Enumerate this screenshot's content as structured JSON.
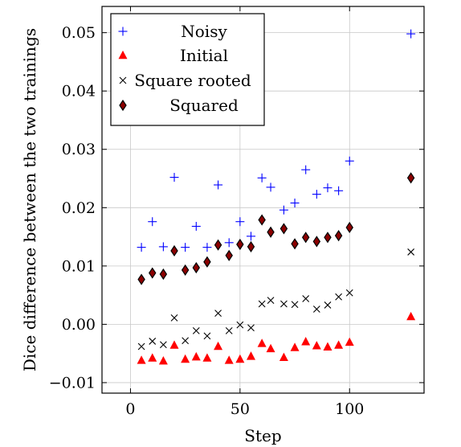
{
  "chart_data": {
    "type": "scatter",
    "xlabel": "Step",
    "ylabel": "Dice difference between the two trainings",
    "xlim": [
      -13,
      134
    ],
    "ylim": [
      -0.0118,
      0.0545
    ],
    "xticks": [
      0,
      50,
      100
    ],
    "xtick_labels": [
      "0",
      "50",
      "100"
    ],
    "yticks": [
      -0.01,
      0,
      0.01,
      0.02,
      0.03,
      0.04,
      0.05
    ],
    "ytick_labels": [
      "−0.01",
      "0.00",
      "0.01",
      "0.02",
      "0.03",
      "0.04",
      "0.05"
    ],
    "grid": true,
    "legend_position": "top-left",
    "series": [
      {
        "name": "Noisy",
        "marker": "plus",
        "color": "#0000ff",
        "x": [
          5,
          10,
          15,
          20,
          25,
          30,
          35,
          40,
          45,
          50,
          55,
          60,
          64,
          70,
          75,
          80,
          85,
          90,
          95,
          100,
          128
        ],
        "y": [
          0.0132,
          0.0176,
          0.0133,
          0.0252,
          0.0132,
          0.0168,
          0.0132,
          0.0239,
          0.014,
          0.0176,
          0.0151,
          0.0251,
          0.0235,
          0.0196,
          0.0208,
          0.0265,
          0.0223,
          0.0234,
          0.0229,
          0.028,
          0.0498
        ]
      },
      {
        "name": "Initial",
        "marker": "triangle",
        "color": "#ff0000",
        "x": [
          5,
          10,
          15,
          20,
          25,
          30,
          35,
          40,
          45,
          50,
          55,
          60,
          64,
          70,
          75,
          80,
          85,
          90,
          95,
          100,
          128
        ],
        "y": [
          -0.0062,
          -0.0058,
          -0.0063,
          -0.0036,
          -0.006,
          -0.0056,
          -0.0058,
          -0.0038,
          -0.0062,
          -0.006,
          -0.0055,
          -0.0033,
          -0.0042,
          -0.0057,
          -0.004,
          -0.003,
          -0.0037,
          -0.0039,
          -0.0036,
          -0.0031,
          0.0013
        ]
      },
      {
        "name": "Square rooted",
        "marker": "cross",
        "color": "#000000",
        "x": [
          5,
          10,
          15,
          20,
          25,
          30,
          35,
          40,
          45,
          50,
          55,
          60,
          64,
          70,
          75,
          80,
          85,
          90,
          95,
          100,
          128
        ],
        "y": [
          -0.0038,
          -0.0029,
          -0.0035,
          0.0011,
          -0.0028,
          -0.0011,
          -0.002,
          0.0019,
          -0.0011,
          -0.0001,
          -0.0006,
          0.0035,
          0.0041,
          0.0035,
          0.0034,
          0.0044,
          0.0026,
          0.0033,
          0.0047,
          0.0054,
          0.0124
        ]
      },
      {
        "name": "Squared",
        "marker": "diamond",
        "color": "#8b0000",
        "x": [
          5,
          10,
          15,
          20,
          25,
          30,
          35,
          40,
          45,
          50,
          55,
          60,
          64,
          70,
          75,
          80,
          85,
          90,
          95,
          100,
          128
        ],
        "y": [
          0.0077,
          0.0088,
          0.0086,
          0.0126,
          0.0093,
          0.0097,
          0.0107,
          0.0136,
          0.0118,
          0.0137,
          0.0133,
          0.0179,
          0.0158,
          0.0164,
          0.0138,
          0.0149,
          0.0142,
          0.0149,
          0.0152,
          0.0166,
          0.0251
        ]
      }
    ]
  }
}
